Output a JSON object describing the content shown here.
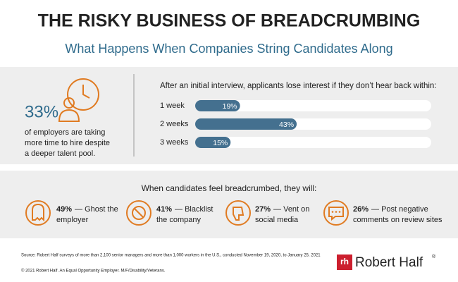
{
  "header": {
    "title": "THE RISKY BUSINESS OF BREADCRUMBING",
    "subtitle": "What Happens When Companies String Candidates Along"
  },
  "stat": {
    "value": "33%",
    "lines": [
      "of employers are taking",
      "more time to hire despite",
      "a deeper talent pool."
    ]
  },
  "chart_data": {
    "type": "bar",
    "orientation": "horizontal",
    "title": "After an initial interview, applicants lose interest if they don’t hear back within:",
    "categories": [
      "1 week",
      "2 weeks",
      "3 weeks"
    ],
    "values": [
      19,
      43,
      15
    ],
    "value_labels": [
      "19%",
      "43%",
      "15%"
    ],
    "color": "#44708f",
    "xlim": [
      0,
      100
    ]
  },
  "breadcrumbed": {
    "heading": "When candidates feel breadcrumbed, they will:",
    "items": [
      {
        "percent": "49%",
        "lines": [
          "— Ghost the",
          "employer"
        ]
      },
      {
        "percent": "41%",
        "lines": [
          "— Blacklist",
          "the company"
        ]
      },
      {
        "percent": "27%",
        "lines": [
          "— Vent on",
          "social media"
        ]
      },
      {
        "percent": "26%",
        "lines": [
          "— Post negative",
          "comments on review sites"
        ]
      }
    ]
  },
  "footer": {
    "source": "Source: Robert Half surveys of more than 2,100 senior managers and more than 1,000 workers in the U.S., conducted November 19, 2020, to January 25, 2021",
    "copyright": "© 2021 Robert Half. An Equal Opportunity Employer. M/F/Disability/Veterans.",
    "brand_mark": "rh",
    "brand": "Robert Half",
    "registered": "®"
  }
}
